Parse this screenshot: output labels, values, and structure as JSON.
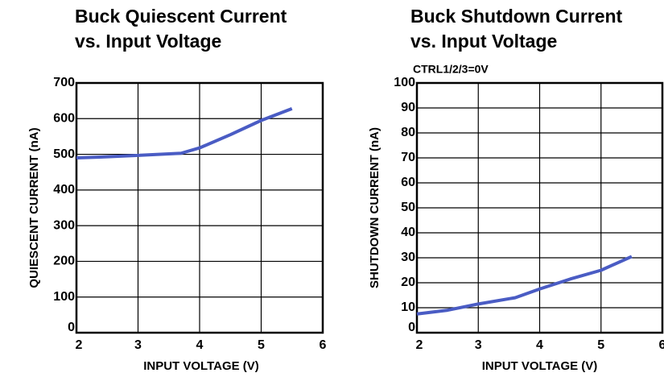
{
  "chart_data": [
    {
      "type": "line",
      "title": [
        "Buck Quiescent Current",
        "vs. Input Voltage"
      ],
      "x_label": "INPUT VOLTAGE (V)",
      "y_label": "QUIESCENT CURRENT (nA)",
      "x": [
        2,
        2.5,
        3,
        3.7,
        4,
        4.5,
        5,
        5.5
      ],
      "values": [
        490,
        493,
        497,
        503,
        518,
        555,
        595,
        628
      ],
      "color": "#4a5cc4",
      "xlim": [
        2,
        6
      ],
      "xticks": [
        2,
        3,
        4,
        5,
        6
      ],
      "ylim": [
        0,
        700
      ],
      "yticks": [
        0,
        100,
        200,
        300,
        400,
        500,
        600,
        700
      ],
      "grid": true
    },
    {
      "type": "line",
      "title": [
        "Buck Shutdown Current",
        "vs. Input Voltage"
      ],
      "subtitle": "CTRL1/2/3=0V",
      "x_label": "INPUT VOLTAGE (V)",
      "y_label": "SHUTDOWN CURRENT (nA)",
      "x": [
        2,
        2.5,
        3,
        3.6,
        4,
        4.5,
        5,
        5.5
      ],
      "values": [
        7.5,
        9,
        11.5,
        14,
        17.5,
        21.5,
        25,
        30.5
      ],
      "color": "#4a5cc4",
      "xlim": [
        2,
        6
      ],
      "xticks": [
        2,
        3,
        4,
        5,
        6
      ],
      "ylim": [
        0,
        100
      ],
      "yticks": [
        0,
        10,
        20,
        30,
        40,
        50,
        60,
        70,
        80,
        90,
        100
      ],
      "grid": true
    }
  ]
}
